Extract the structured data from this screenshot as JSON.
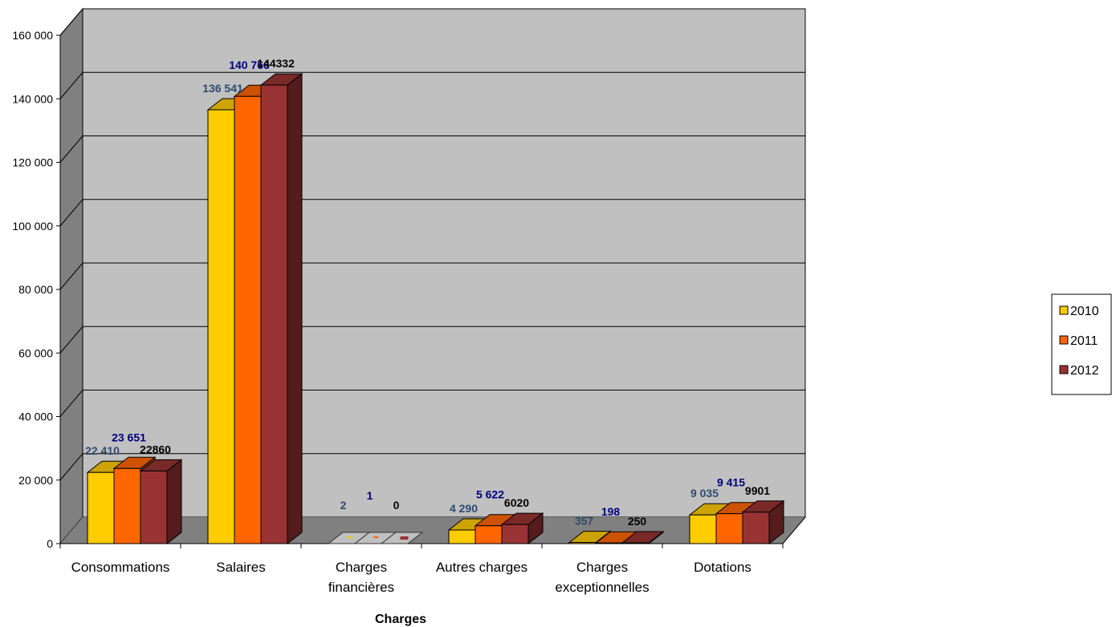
{
  "chart_data": {
    "type": "bar",
    "title": "",
    "xlabel": "Charges",
    "ylabel": "",
    "ylim": [
      0,
      160000
    ],
    "yticks": [
      0,
      20000,
      40000,
      60000,
      80000,
      100000,
      120000,
      140000,
      160000
    ],
    "ytick_labels": [
      "0",
      "20 000",
      "40 000",
      "60 000",
      "80 000",
      "100 000",
      "120 000",
      "140 000",
      "160 000"
    ],
    "grid": true,
    "three_d": true,
    "legend_position": "right",
    "categories": [
      "Consommations",
      "Salaires",
      "Charges financières",
      "Autres charges",
      "Charges exceptionnelles",
      "Dotations"
    ],
    "category_lines": [
      [
        "Consommations"
      ],
      [
        "Salaires"
      ],
      [
        "Charges",
        "financières"
      ],
      [
        "Autres charges"
      ],
      [
        "Charges",
        "exceptionnelles"
      ],
      [
        "Dotations"
      ]
    ],
    "series": [
      {
        "name": "2010",
        "color": "#FFCC00",
        "label_color": "#2E4A6E",
        "values": [
          22410,
          136541,
          2,
          4290,
          357,
          9035
        ],
        "labels": [
          "22 410",
          "136 541",
          "2",
          "4 290",
          "357",
          "9 035"
        ]
      },
      {
        "name": "2011",
        "color": "#FF6600",
        "label_color": "#000080",
        "values": [
          23651,
          140766,
          1,
          5622,
          198,
          9415
        ],
        "labels": [
          "23 651",
          "140 766",
          "1",
          "5 622",
          "198",
          "9 415"
        ]
      },
      {
        "name": "2012",
        "color": "#993333",
        "label_color": "#000000",
        "values": [
          22860,
          144332,
          0,
          6020,
          250,
          9901
        ],
        "labels": [
          "22860",
          "144332",
          "0",
          "6020",
          "250",
          "9901"
        ]
      }
    ],
    "colors": {
      "wall": "#C0C0C0",
      "side_wall": "#808080",
      "floor": "#808080",
      "gridline": "#000000"
    }
  }
}
